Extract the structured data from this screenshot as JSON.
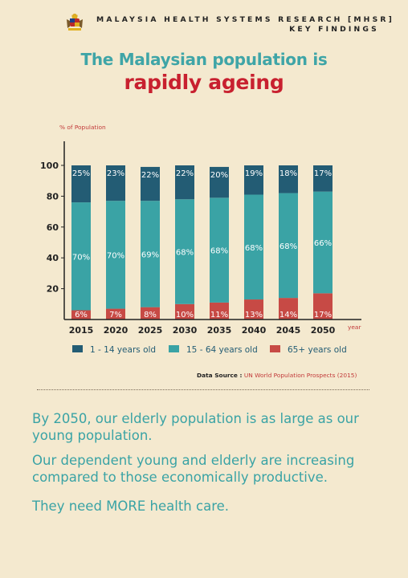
{
  "header": {
    "line1": "MALAYSIA HEALTH SYSTEMS RESEARCH [MHSR]",
    "line2": "KEY FINDINGS"
  },
  "title": {
    "line1": "The Malaysian population is",
    "line2": "rapidly ageing"
  },
  "chart_data": {
    "type": "bar",
    "stacked": true,
    "ylabel": "% of Population",
    "xlabel": "year",
    "ylim": [
      0,
      100
    ],
    "yticks": [
      20,
      40,
      60,
      80,
      100
    ],
    "categories": [
      "2015",
      "2020",
      "2025",
      "2030",
      "2035",
      "2040",
      "2045",
      "2050"
    ],
    "series": [
      {
        "name": "65+ years old",
        "color": "#c74a45",
        "values": [
          6,
          7,
          8,
          10,
          11,
          13,
          14,
          17
        ],
        "labels": [
          "6%",
          "7%",
          "8%",
          "10%",
          "11%",
          "13%",
          "14%",
          "17%"
        ]
      },
      {
        "name": "15 - 64 years old",
        "color": "#3aa3a5",
        "values": [
          70,
          70,
          69,
          68,
          68,
          68,
          68,
          66
        ],
        "labels": [
          "70%",
          "70%",
          "69%",
          "68%",
          "68%",
          "68%",
          "68%",
          "66%"
        ]
      },
      {
        "name": "1 - 14 years old",
        "color": "#235c74",
        "values": [
          25,
          23,
          22,
          22,
          20,
          19,
          18,
          17
        ],
        "labels": [
          "25%",
          "23%",
          "22%",
          "22%",
          "20%",
          "19%",
          "18%",
          "17%"
        ]
      }
    ],
    "legend_order": [
      "1 - 14 years old",
      "15 - 64 years old",
      "65+ years old"
    ],
    "legend_position": "bottom"
  },
  "source": {
    "label": "Data Source :",
    "value": "UN World Population Prospects (2015)"
  },
  "paragraphs": {
    "p1": "By 2050, our elderly population is as large as our young population.",
    "p2": "Our dependent young and elderly  are increasing compared to those economically productive.",
    "p3": "They need MORE health care."
  }
}
